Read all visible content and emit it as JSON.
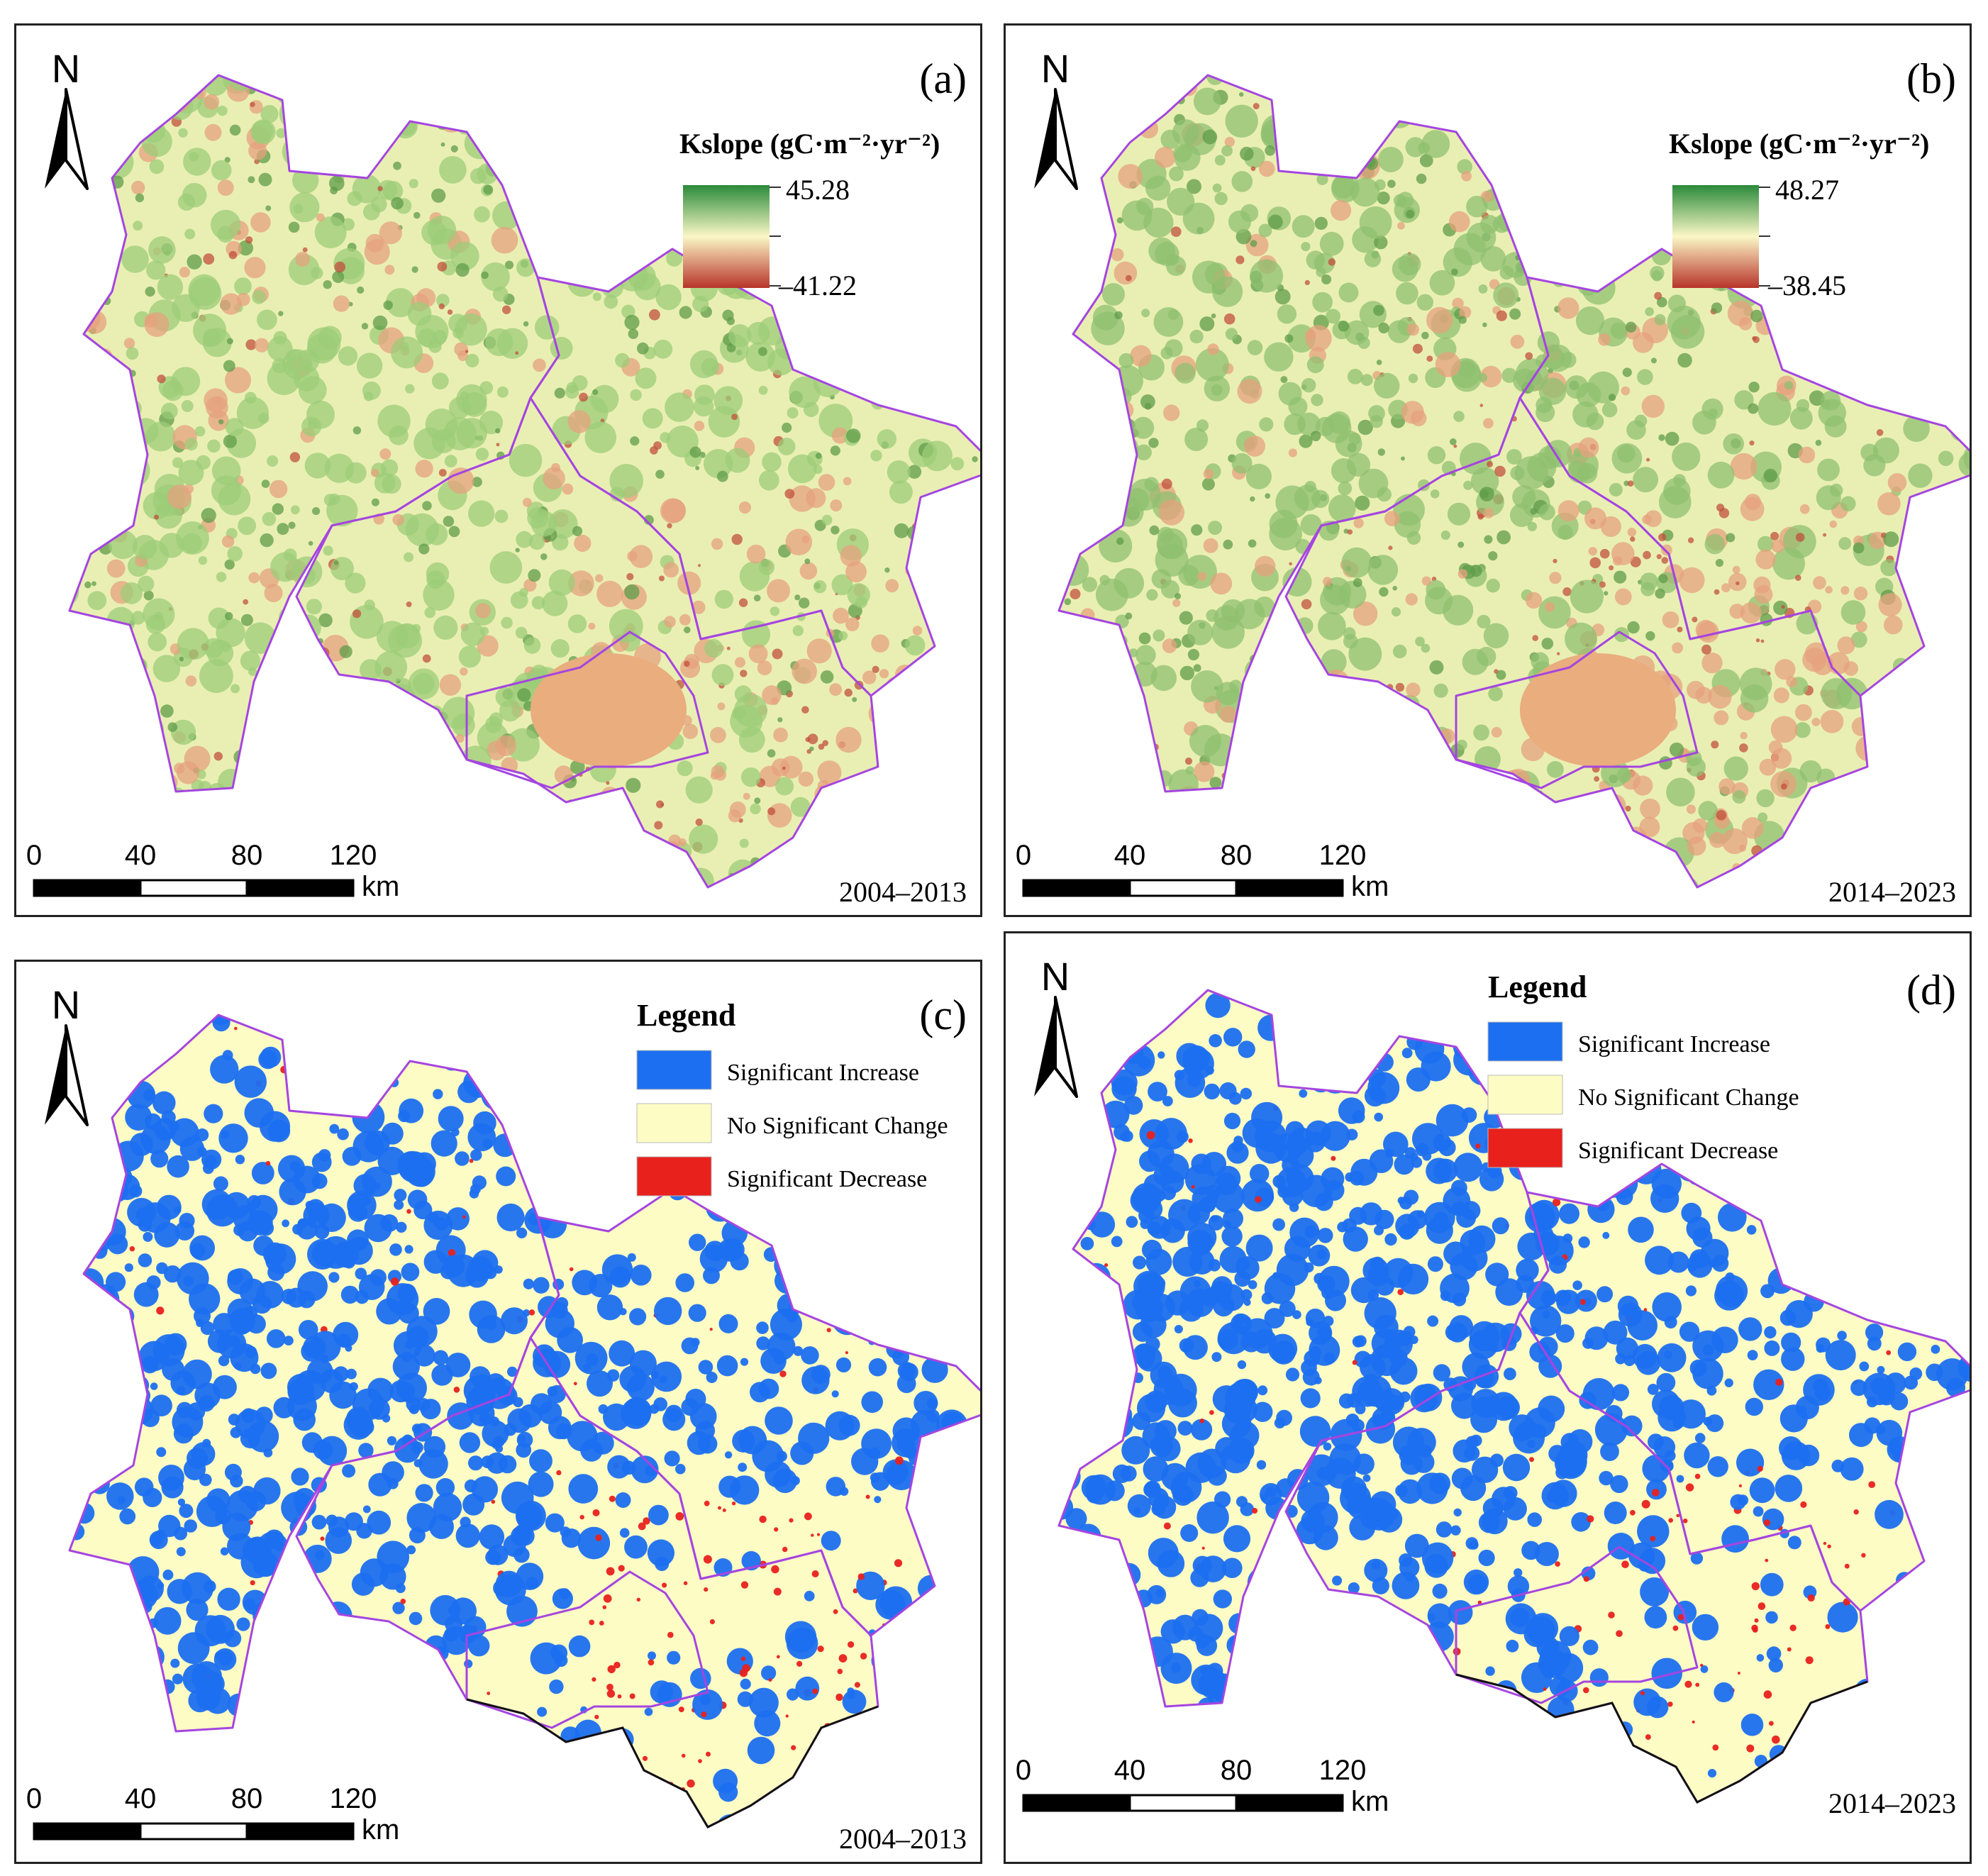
{
  "colors": {
    "boundary": "#a545e0",
    "outer_boundary": "#111111",
    "increase": "#1c6ff0",
    "nochange": "#fcfcc4",
    "decrease": "#e8211d",
    "slope_high": "#2a8a3a",
    "slope_mid": "#fbf7c6",
    "slope_low": "#b8342a"
  },
  "icons": {
    "north_arrow": "north-arrow-icon"
  },
  "panels": [
    {
      "id": "a",
      "label": "(a)",
      "period": "2004–2013",
      "kind": "slope",
      "legend_title": "Kslope (gC·m⁻²·yr⁻²)",
      "legend_max": "45.28",
      "legend_min": "–41.22",
      "scale": {
        "ticks": [
          "0",
          "40",
          "80",
          "120"
        ],
        "unit": "km"
      },
      "north": "N"
    },
    {
      "id": "b",
      "label": "(b)",
      "period": "2014–2023",
      "kind": "slope",
      "legend_title": "Kslope (gC·m⁻²·yr⁻²)",
      "legend_max": "48.27",
      "legend_min": "–38.45",
      "scale": {
        "ticks": [
          "0",
          "40",
          "80",
          "120"
        ],
        "unit": "km"
      },
      "north": "N"
    },
    {
      "id": "c",
      "label": "(c)",
      "period": "2004–2013",
      "kind": "significance",
      "legend_title": "Legend",
      "legend_items": [
        "Significant Increase",
        "No Significant Change",
        "Significant Decrease"
      ],
      "scale": {
        "ticks": [
          "0",
          "40",
          "80",
          "120"
        ],
        "unit": "km"
      },
      "north": "N"
    },
    {
      "id": "d",
      "label": "(d)",
      "period": "2014–2023",
      "kind": "significance",
      "legend_title": "Legend",
      "legend_items": [
        "Significant Increase",
        "No Significant Change",
        "Significant Decrease"
      ],
      "scale": {
        "ticks": [
          "0",
          "40",
          "80",
          "120"
        ],
        "unit": "km"
      },
      "north": "N"
    }
  ]
}
